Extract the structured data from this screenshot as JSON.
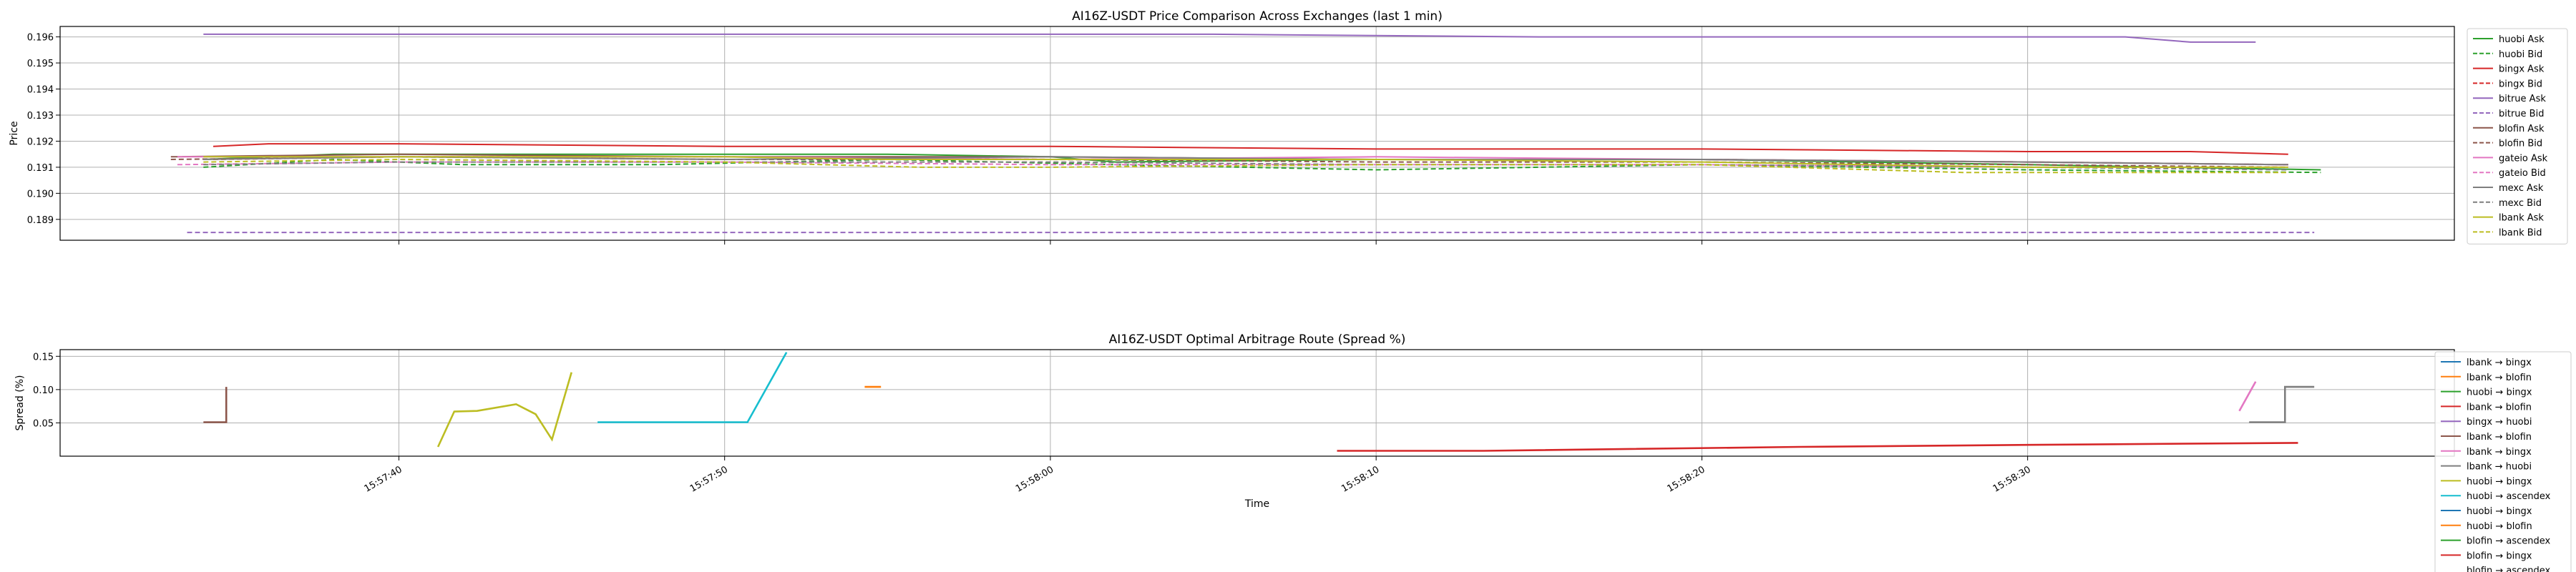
{
  "chart_data": [
    {
      "type": "line",
      "title": "AI16Z-USDT Price Comparison Across Exchanges (last 1 min)",
      "xlabel": "",
      "ylabel": "Price",
      "xlim": [
        29.6,
        103.1
      ],
      "ylim": [
        0.1882,
        0.1964
      ],
      "y_ticks": [
        "0.189",
        "0.190",
        "0.191",
        "0.192",
        "0.193",
        "0.194",
        "0.195",
        "0.196"
      ],
      "x_ticks": [
        40,
        50,
        60,
        70,
        80,
        90
      ],
      "grid": true,
      "legend_position": "right",
      "series": [
        {
          "name": "huobi Ask",
          "color": "#2ca02c",
          "style": "solid",
          "points": [
            [
              34,
              0.1913
            ],
            [
              38,
              0.1915
            ],
            [
              45,
              0.1915
            ],
            [
              55,
              0.1915
            ],
            [
              60,
              0.1914
            ],
            [
              62,
              0.1912
            ],
            [
              70,
              0.1913
            ],
            [
              80,
              0.1913
            ],
            [
              90,
              0.1911
            ],
            [
              99,
              0.1909
            ]
          ]
        },
        {
          "name": "huobi Bid",
          "color": "#2ca02c",
          "style": "dashed",
          "points": [
            [
              34,
              0.191
            ],
            [
              38,
              0.1913
            ],
            [
              42,
              0.1911
            ],
            [
              48,
              0.1911
            ],
            [
              55,
              0.1913
            ],
            [
              62,
              0.1911
            ],
            [
              70,
              0.1909
            ],
            [
              80,
              0.1911
            ],
            [
              90,
              0.1909
            ],
            [
              99,
              0.1908
            ]
          ]
        },
        {
          "name": "bingx Ask",
          "color": "#d62728",
          "style": "solid",
          "points": [
            [
              34.3,
              0.1918
            ],
            [
              36,
              0.1919
            ],
            [
              40,
              0.1919
            ],
            [
              50,
              0.1918
            ],
            [
              60,
              0.1918
            ],
            [
              70,
              0.1917
            ],
            [
              80,
              0.1917
            ],
            [
              90,
              0.1916
            ],
            [
              95,
              0.1916
            ],
            [
              98,
              0.1915
            ]
          ]
        },
        {
          "name": "bingx Bid",
          "color": "#d62728",
          "style": "dashed",
          "points": [
            [
              34.3,
              0.1913
            ],
            [
              40,
              0.1914
            ],
            [
              50,
              0.1914
            ],
            [
              60,
              0.1913
            ],
            [
              70,
              0.1913
            ],
            [
              80,
              0.1913
            ],
            [
              90,
              0.1912
            ],
            [
              98,
              0.1911
            ]
          ]
        },
        {
          "name": "bitrue Ask",
          "color": "#9467bd",
          "style": "solid",
          "points": [
            [
              34,
              0.1961
            ],
            [
              45,
              0.1961
            ],
            [
              55,
              0.1961
            ],
            [
              65,
              0.1961
            ],
            [
              75,
              0.196
            ],
            [
              85,
              0.196
            ],
            [
              90,
              0.196
            ],
            [
              93,
              0.196
            ],
            [
              95,
              0.1958
            ],
            [
              97,
              0.1958
            ]
          ]
        },
        {
          "name": "bitrue Bid",
          "color": "#9467bd",
          "style": "dashed",
          "points": [
            [
              33.5,
              0.1885
            ],
            [
              45,
              0.1885
            ],
            [
              60,
              0.1885
            ],
            [
              75,
              0.1885
            ],
            [
              90,
              0.1885
            ],
            [
              98.8,
              0.1885
            ]
          ]
        },
        {
          "name": "blofin Ask",
          "color": "#8c564b",
          "style": "solid",
          "points": [
            [
              33,
              0.1914
            ],
            [
              40,
              0.1915
            ],
            [
              50,
              0.1914
            ],
            [
              60,
              0.1914
            ],
            [
              70,
              0.1913
            ],
            [
              80,
              0.1913
            ],
            [
              90,
              0.1912
            ],
            [
              98,
              0.1911
            ]
          ]
        },
        {
          "name": "blofin Bid",
          "color": "#8c564b",
          "style": "dashed",
          "points": [
            [
              33,
              0.1913
            ],
            [
              40,
              0.1914
            ],
            [
              50,
              0.1913
            ],
            [
              60,
              0.1913
            ],
            [
              70,
              0.1912
            ],
            [
              80,
              0.1912
            ],
            [
              90,
              0.1911
            ],
            [
              98,
              0.191
            ]
          ]
        },
        {
          "name": "gateio Ask",
          "color": "#e377c2",
          "style": "solid",
          "points": [
            [
              33.2,
              0.1914
            ],
            [
              40,
              0.1914
            ],
            [
              50,
              0.1914
            ],
            [
              60,
              0.1913
            ],
            [
              70,
              0.1914
            ],
            [
              80,
              0.1913
            ],
            [
              90,
              0.1912
            ],
            [
              98,
              0.1911
            ]
          ]
        },
        {
          "name": "gateio Bid",
          "color": "#e377c2",
          "style": "dashed",
          "points": [
            [
              33.2,
              0.1911
            ],
            [
              40,
              0.1912
            ],
            [
              50,
              0.1912
            ],
            [
              60,
              0.1911
            ],
            [
              70,
              0.1911
            ],
            [
              80,
              0.1911
            ],
            [
              90,
              0.191
            ],
            [
              98,
              0.191
            ]
          ]
        },
        {
          "name": "mexc Ask",
          "color": "#7f7f7f",
          "style": "solid",
          "points": [
            [
              34,
              0.1913
            ],
            [
              40,
              0.1914
            ],
            [
              50,
              0.1913
            ],
            [
              60,
              0.1914
            ],
            [
              70,
              0.1913
            ],
            [
              80,
              0.1913
            ],
            [
              90,
              0.1912
            ],
            [
              98,
              0.1911
            ]
          ]
        },
        {
          "name": "mexc Bid",
          "color": "#7f7f7f",
          "style": "dashed",
          "points": [
            [
              34,
              0.1911
            ],
            [
              40,
              0.1912
            ],
            [
              50,
              0.1912
            ],
            [
              60,
              0.1912
            ],
            [
              70,
              0.1911
            ],
            [
              80,
              0.1911
            ],
            [
              90,
              0.191
            ],
            [
              98,
              0.1909
            ]
          ]
        },
        {
          "name": "lbank Ask",
          "color": "#bcbd22",
          "style": "solid",
          "points": [
            [
              34,
              0.1914
            ],
            [
              40,
              0.1914
            ],
            [
              50,
              0.1914
            ],
            [
              55,
              0.1913
            ],
            [
              60,
              0.1913
            ],
            [
              70,
              0.1913
            ],
            [
              80,
              0.1912
            ],
            [
              90,
              0.191
            ],
            [
              98,
              0.191
            ]
          ]
        },
        {
          "name": "lbank Bid",
          "color": "#bcbd22",
          "style": "dashed",
          "points": [
            [
              34,
              0.1912
            ],
            [
              40,
              0.1913
            ],
            [
              50,
              0.1912
            ],
            [
              56,
              0.191
            ],
            [
              60,
              0.191
            ],
            [
              70,
              0.1911
            ],
            [
              80,
              0.1911
            ],
            [
              88,
              0.1908
            ],
            [
              92,
              0.1908
            ],
            [
              98,
              0.1908
            ]
          ]
        }
      ]
    },
    {
      "type": "line",
      "title": "AI16Z-USDT Optimal Arbitrage Route (Spread %)",
      "xlabel": "Time",
      "ylabel": "Spread (%)",
      "xlim": [
        29.6,
        103.1
      ],
      "ylim": [
        0.0,
        0.16
      ],
      "y_ticks": [
        "0.05",
        "0.10",
        "0.15"
      ],
      "x_ticks": [
        "15:57:40",
        "15:57:50",
        "15:58:00",
        "15:58:10",
        "15:58:20",
        "15:58:30"
      ],
      "grid": true,
      "legend_position": "right",
      "series": [
        {
          "name": "lbank → bingx",
          "color": "#1f77b4",
          "style": "solid",
          "points": []
        },
        {
          "name": "lbank → blofin",
          "color": "#ff7f0e",
          "style": "solid",
          "points": []
        },
        {
          "name": "huobi → bingx",
          "color": "#2ca02c",
          "style": "solid",
          "points": []
        },
        {
          "name": "lbank → blofin",
          "color": "#d62728",
          "style": "solid",
          "points": []
        },
        {
          "name": "bingx → huobi",
          "color": "#9467bd",
          "style": "solid",
          "points": []
        },
        {
          "name": "lbank → blofin",
          "color": "#8c564b",
          "style": "solid",
          "points": [
            [
              34,
              0.051
            ],
            [
              34.7,
              0.051
            ],
            [
              34.7,
              0.104
            ]
          ]
        },
        {
          "name": "lbank → bingx",
          "color": "#e377c2",
          "style": "solid",
          "points": [
            [
              96.5,
              0.068
            ],
            [
              97.0,
              0.112
            ]
          ]
        },
        {
          "name": "lbank → huobi",
          "color": "#7f7f7f",
          "style": "solid",
          "points": [
            [
              96.8,
              0.051
            ],
            [
              97.9,
              0.051
            ],
            [
              97.9,
              0.104
            ],
            [
              98.8,
              0.104
            ]
          ]
        },
        {
          "name": "huobi → bingx",
          "color": "#bcbd22",
          "style": "solid",
          "points": [
            [
              41.2,
              0.014
            ],
            [
              41.7,
              0.067
            ],
            [
              42.4,
              0.068
            ],
            [
              43.6,
              0.078
            ],
            [
              44.2,
              0.063
            ],
            [
              44.7,
              0.025
            ],
            [
              45.3,
              0.126
            ]
          ]
        },
        {
          "name": "huobi → ascendex",
          "color": "#17becf",
          "style": "solid",
          "points": [
            [
              46.1,
              0.051
            ],
            [
              50.7,
              0.051
            ],
            [
              51.9,
              0.156
            ]
          ]
        },
        {
          "name": "huobi → bingx",
          "color": "#1f77b4",
          "style": "solid",
          "points": []
        },
        {
          "name": "huobi → blofin",
          "color": "#ff7f0e",
          "style": "solid",
          "points": [
            [
              54.3,
              0.104
            ],
            [
              54.8,
              0.104
            ]
          ]
        },
        {
          "name": "blofin → ascendex",
          "color": "#2ca02c",
          "style": "solid",
          "points": []
        },
        {
          "name": "blofin → bingx",
          "color": "#d62728",
          "style": "solid",
          "points": [
            [
              68.8,
              0.008
            ],
            [
              73.3,
              0.008
            ],
            [
              83.0,
              0.014
            ],
            [
              90.0,
              0.017
            ],
            [
              98.3,
              0.02
            ]
          ]
        }
      ],
      "legend_overflow_text": "blofin → ascendex"
    }
  ]
}
